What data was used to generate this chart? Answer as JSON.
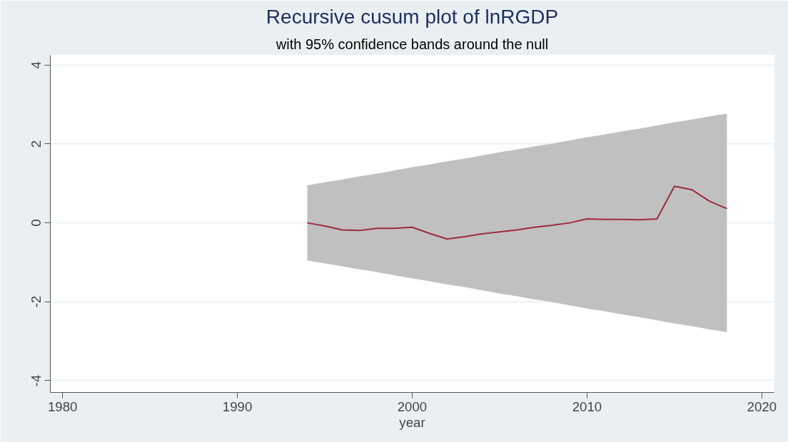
{
  "chart_data": {
    "type": "line",
    "title": "Recursive cusum plot of lnRGDP",
    "subtitle": "with 95% confidence bands around the null",
    "xlabel": "year",
    "x": [
      1994,
      1995,
      1996,
      1997,
      1998,
      1999,
      2000,
      2001,
      2002,
      2003,
      2004,
      2005,
      2006,
      2007,
      2008,
      2009,
      2010,
      2011,
      2012,
      2013,
      2014,
      2015,
      2016,
      2017,
      2018
    ],
    "series": [
      {
        "color": "#9b2d3a",
        "values": [
          0,
          -0.08,
          -0.18,
          -0.19,
          -0.14,
          -0.14,
          -0.11,
          -0.27,
          -0.41,
          -0.35,
          -0.28,
          -0.23,
          -0.18,
          -0.11,
          -0.06,
          0.0,
          0.1,
          0.09,
          0.09,
          0.08,
          0.1,
          0.93,
          0.84,
          0.55,
          0.36
        ],
        "lower": [
          -0.95,
          -1.03,
          -1.1,
          -1.18,
          -1.25,
          -1.33,
          -1.41,
          -1.48,
          -1.56,
          -1.63,
          -1.71,
          -1.79,
          -1.86,
          -1.94,
          -2.01,
          -2.09,
          -2.17,
          -2.24,
          -2.32,
          -2.39,
          -2.47,
          -2.55,
          -2.62,
          -2.7,
          -2.77
        ],
        "upper": [
          0.95,
          1.03,
          1.1,
          1.18,
          1.25,
          1.33,
          1.41,
          1.48,
          1.56,
          1.63,
          1.71,
          1.79,
          1.86,
          1.94,
          2.01,
          2.09,
          2.17,
          2.24,
          2.32,
          2.39,
          2.47,
          2.55,
          2.62,
          2.7,
          2.77
        ]
      }
    ],
    "xlim": [
      1979.3,
      2020.7
    ],
    "xticks": [
      1980,
      1990,
      2000,
      2010,
      2020
    ],
    "ylim": [
      -4.3,
      4.25
    ],
    "yticks": [
      -4,
      -2,
      0,
      2,
      4
    ],
    "grid": "y",
    "line_style": "solid",
    "marker": "none"
  }
}
